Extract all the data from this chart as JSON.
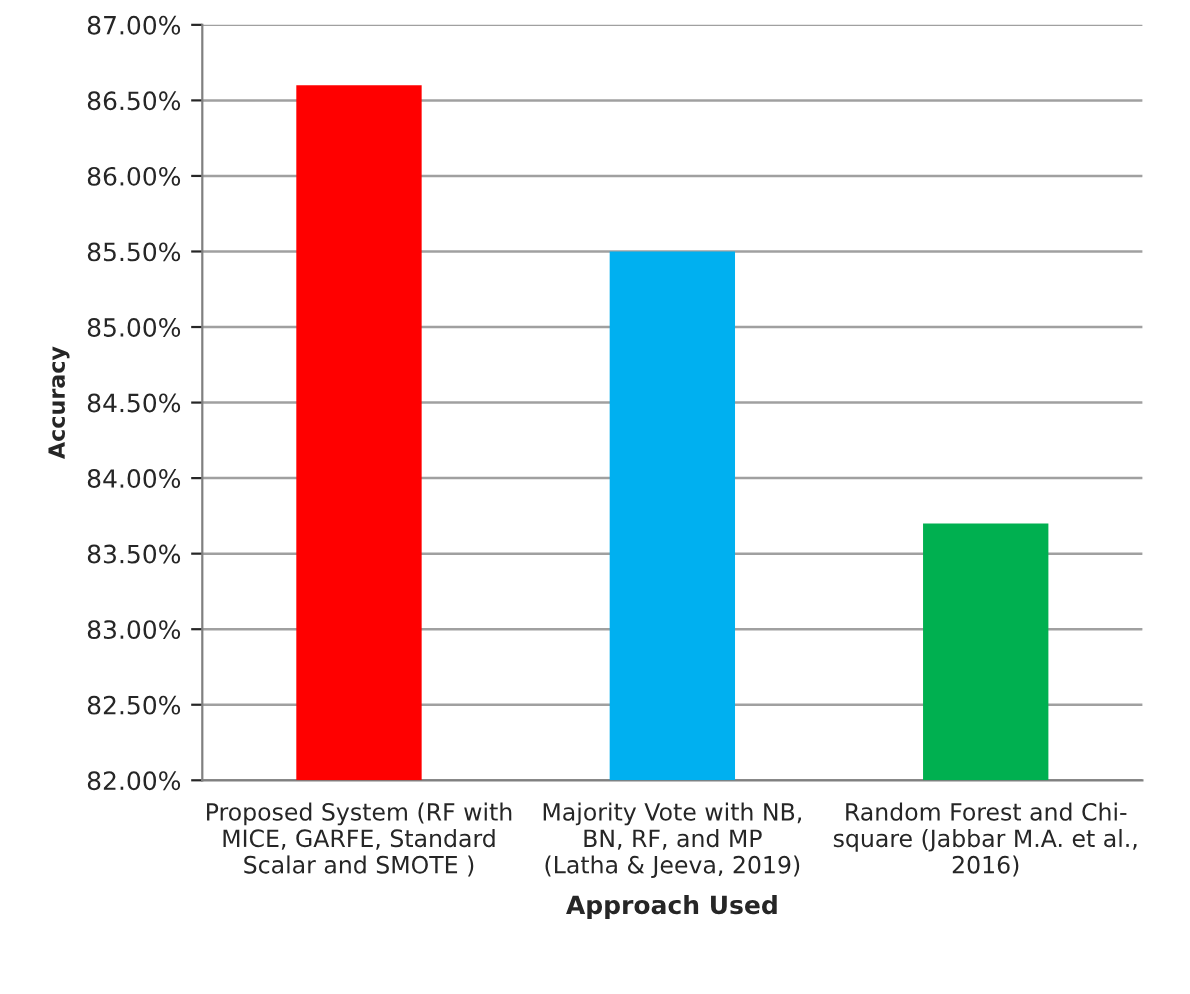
{
  "chart_data": {
    "type": "bar",
    "xlabel": "Approach Used",
    "ylabel": "Accuracy",
    "categories": [
      "Proposed System (RF with\nMICE, GARFE, Standard\nScalar and SMOTE )",
      "Majority Vote with NB,\nBN, RF, and MP\n(Latha & Jeeva, 2019)",
      "Random Forest and Chi-\nsquare (Jabbar M.A. et al.,\n2016)"
    ],
    "values": [
      86.6,
      85.5,
      83.7
    ],
    "colors": [
      "#ff0000",
      "#00b0f0",
      "#00b050"
    ],
    "ylim": [
      82,
      87
    ],
    "yticks": [
      {
        "value": 82,
        "label": "82.00%"
      },
      {
        "value": 82.5,
        "label": "82.50%"
      },
      {
        "value": 83,
        "label": "83.00%"
      },
      {
        "value": 83.5,
        "label": "83.50%"
      },
      {
        "value": 84,
        "label": "84.00%"
      },
      {
        "value": 84.5,
        "label": "84.50%"
      },
      {
        "value": 85,
        "label": "85.00%"
      },
      {
        "value": 85.5,
        "label": "85.50%"
      },
      {
        "value": 86,
        "label": "86.00%"
      },
      {
        "value": 86.5,
        "label": "86.50%"
      },
      {
        "value": 87,
        "label": "87.00%"
      }
    ],
    "grid": "y"
  }
}
